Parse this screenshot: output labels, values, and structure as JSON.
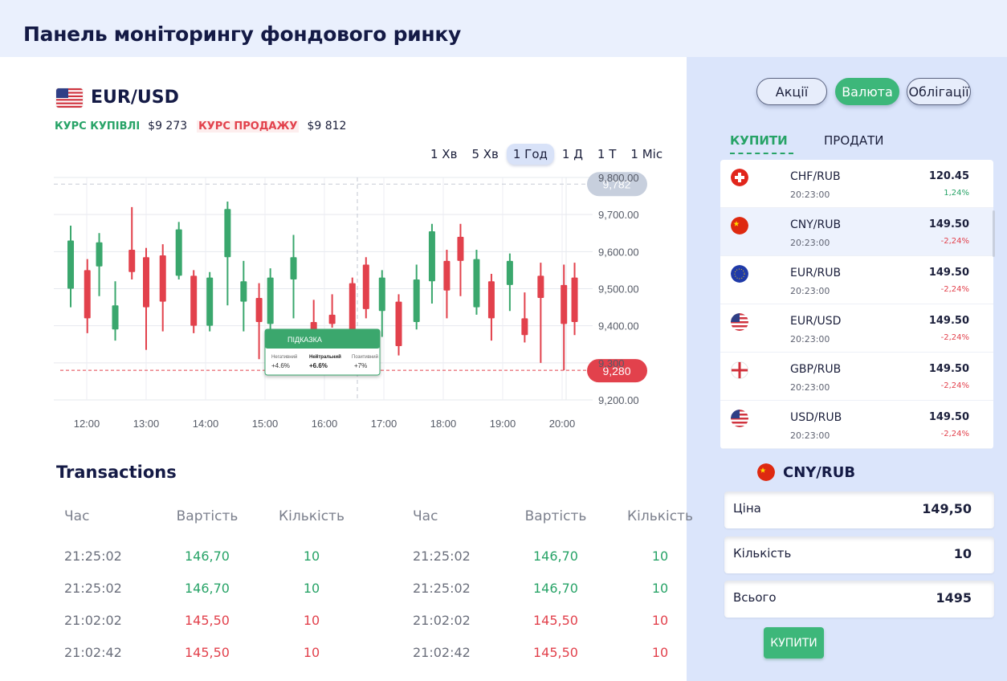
{
  "header": {
    "title": "Панель моніторингу фондового ринку"
  },
  "pair": {
    "title": "EUR/USD",
    "flag_icon": "us-flag-icon",
    "buy_label": "КУРС КУПІВЛІ",
    "buy_value": "$9 273",
    "sell_label": "КУРС ПРОДАЖУ",
    "sell_value": "$9 812"
  },
  "timeframes": [
    {
      "label": "1 Хв",
      "active": false
    },
    {
      "label": "5 Хв",
      "active": false
    },
    {
      "label": "1 Год",
      "active": true
    },
    {
      "label": "1 Д",
      "active": false
    },
    {
      "label": "1 Т",
      "active": false
    },
    {
      "label": "1 Міс",
      "active": false
    }
  ],
  "tooltip": {
    "title": "ПІДКАЗКА",
    "items": [
      {
        "label": "Негативний",
        "value": "+4.6%"
      },
      {
        "label": "Нейтральний",
        "value": "+6.6%"
      },
      {
        "label": "Позитивний",
        "value": "+7%"
      }
    ]
  },
  "chart_data": {
    "type": "candlestick",
    "x_ticks": [
      "12:00",
      "13:00",
      "14:00",
      "15:00",
      "16:00",
      "17:00",
      "18:00",
      "19:00",
      "20:00"
    ],
    "y_ticks": [
      "9,800.00",
      "9,700.00",
      "9,600.00",
      "9,500.00",
      "9,400.00",
      "9,300",
      "9,200.00"
    ],
    "ylim": [
      9200,
      9800
    ],
    "reference_high": {
      "value": 9782,
      "label": "9,782",
      "color": "#c7cfdd"
    },
    "reference_low": {
      "value": 9280,
      "label": "9,280",
      "color": "#e2414c"
    },
    "colors": {
      "up": "#3aa76d",
      "down": "#e2414c"
    },
    "candles": [
      {
        "x": 11.73,
        "open": 9500,
        "close": 9630,
        "high": 9670,
        "low": 9450
      },
      {
        "x": 12.01,
        "open": 9550,
        "close": 9420,
        "high": 9580,
        "low": 9380
      },
      {
        "x": 12.21,
        "open": 9560,
        "close": 9625,
        "high": 9650,
        "low": 9480
      },
      {
        "x": 12.48,
        "open": 9390,
        "close": 9455,
        "high": 9520,
        "low": 9360
      },
      {
        "x": 12.76,
        "open": 9605,
        "close": 9545,
        "high": 9720,
        "low": 9525
      },
      {
        "x": 13.0,
        "open": 9585,
        "close": 9450,
        "high": 9610,
        "low": 9335
      },
      {
        "x": 13.28,
        "open": 9590,
        "close": 9465,
        "high": 9620,
        "low": 9385
      },
      {
        "x": 13.55,
        "open": 9535,
        "close": 9660,
        "high": 9680,
        "low": 9525
      },
      {
        "x": 13.8,
        "open": 9535,
        "close": 9400,
        "high": 9550,
        "low": 9380
      },
      {
        "x": 14.07,
        "open": 9400,
        "close": 9530,
        "high": 9545,
        "low": 9385
      },
      {
        "x": 14.37,
        "open": 9585,
        "close": 9715,
        "high": 9735,
        "low": 9455
      },
      {
        "x": 14.64,
        "open": 9465,
        "close": 9520,
        "high": 9575,
        "low": 9385
      },
      {
        "x": 14.9,
        "open": 9475,
        "close": 9410,
        "high": 9515,
        "low": 9310
      },
      {
        "x": 15.09,
        "open": 9405,
        "close": 9530,
        "high": 9555,
        "low": 9385
      },
      {
        "x": 15.48,
        "open": 9525,
        "close": 9585,
        "high": 9645,
        "low": 9420
      },
      {
        "x": 15.82,
        "open": 9410,
        "close": 9375,
        "high": 9470,
        "low": 9330
      },
      {
        "x": 16.13,
        "open": 9430,
        "close": 9405,
        "high": 9485,
        "low": 9395
      },
      {
        "x": 16.47,
        "open": 9515,
        "close": 9360,
        "high": 9530,
        "low": 9320
      },
      {
        "x": 16.7,
        "open": 9565,
        "close": 9445,
        "high": 9585,
        "low": 9420
      },
      {
        "x": 16.97,
        "open": 9440,
        "close": 9530,
        "high": 9550,
        "low": 9370
      },
      {
        "x": 17.25,
        "open": 9465,
        "close": 9345,
        "high": 9485,
        "low": 9320
      },
      {
        "x": 17.55,
        "open": 9410,
        "close": 9525,
        "high": 9565,
        "low": 9390
      },
      {
        "x": 17.81,
        "open": 9520,
        "close": 9655,
        "high": 9675,
        "low": 9460
      },
      {
        "x": 18.06,
        "open": 9575,
        "close": 9495,
        "high": 9605,
        "low": 9420
      },
      {
        "x": 18.29,
        "open": 9640,
        "close": 9575,
        "high": 9675,
        "low": 9480
      },
      {
        "x": 18.56,
        "open": 9450,
        "close": 9580,
        "high": 9605,
        "low": 9430
      },
      {
        "x": 18.81,
        "open": 9520,
        "close": 9420,
        "high": 9540,
        "low": 9360
      },
      {
        "x": 19.12,
        "open": 9510,
        "close": 9575,
        "high": 9595,
        "low": 9440
      },
      {
        "x": 19.37,
        "open": 9420,
        "close": 9375,
        "high": 9490,
        "low": 9355
      },
      {
        "x": 19.64,
        "open": 9535,
        "close": 9475,
        "high": 9570,
        "low": 9300
      },
      {
        "x": 20.03,
        "open": 9510,
        "close": 9405,
        "high": 9565,
        "low": 9280
      },
      {
        "x": 20.21,
        "open": 9530,
        "close": 9410,
        "high": 9570,
        "low": 9375
      }
    ],
    "title": "",
    "xlabel": "",
    "ylabel": ""
  },
  "transactions": {
    "title": "Transactions",
    "columns": [
      "Час",
      "Вартість",
      "Кількість"
    ],
    "left": [
      {
        "time": "21:25:02",
        "price": "146,70",
        "qty": "10",
        "side": "buy"
      },
      {
        "time": "21:25:02",
        "price": "146,70",
        "qty": "10",
        "side": "buy"
      },
      {
        "time": "21:02:02",
        "price": "145,50",
        "qty": "10",
        "side": "sell"
      },
      {
        "time": "21:02:42",
        "price": "145,50",
        "qty": "10",
        "side": "sell"
      }
    ],
    "right": [
      {
        "time": "21:25:02",
        "price": "146,70",
        "qty": "10",
        "side": "buy"
      },
      {
        "time": "21:25:02",
        "price": "146,70",
        "qty": "10",
        "side": "buy"
      },
      {
        "time": "21:02:02",
        "price": "145,50",
        "qty": "10",
        "side": "sell"
      },
      {
        "time": "21:02:42",
        "price": "145,50",
        "qty": "10",
        "side": "sell"
      }
    ]
  },
  "sidebar": {
    "asset_tabs": [
      {
        "label": "Акції",
        "active": false
      },
      {
        "label": "Валюта",
        "active": true
      },
      {
        "label": "Облігації",
        "active": false
      }
    ],
    "trade_tabs": [
      {
        "label": "КУПИТИ",
        "active": true
      },
      {
        "label": "ПРОДАТИ",
        "active": false
      }
    ],
    "markets": [
      {
        "pair": "CHF/RUB",
        "time": "20:23:00",
        "price": "120.45",
        "change": "1,24%",
        "trend": "up",
        "flag": "swiss-flag-icon",
        "selected": false
      },
      {
        "pair": "CNY/RUB",
        "time": "20:23:00",
        "price": "149.50",
        "change": "-2,24%",
        "trend": "down",
        "flag": "china-flag-icon",
        "selected": true
      },
      {
        "pair": "EUR/RUB",
        "time": "20:23:00",
        "price": "149.50",
        "change": "-2,24%",
        "trend": "down",
        "flag": "eu-flag-icon",
        "selected": false
      },
      {
        "pair": "EUR/USD",
        "time": "20:23:00",
        "price": "149.50",
        "change": "-2,24%",
        "trend": "down",
        "flag": "us-flag-icon",
        "selected": false
      },
      {
        "pair": "GBP/RUB",
        "time": "20:23:00",
        "price": "149.50",
        "change": "-2,24%",
        "trend": "down",
        "flag": "england-flag-icon",
        "selected": false
      },
      {
        "pair": "USD/RUB",
        "time": "20:23:00",
        "price": "149.50",
        "change": "-2,24%",
        "trend": "down",
        "flag": "us-flag-icon",
        "selected": false
      }
    ],
    "selected_pair": {
      "title": "CNY/RUB",
      "flag": "china-flag-icon"
    },
    "order": {
      "price_label": "Ціна",
      "price_value": "149,50",
      "qty_label": "Кількість",
      "qty_value": "10",
      "total_label": "Всього",
      "total_value": "1495"
    },
    "buy_button": "КУПИТИ"
  }
}
